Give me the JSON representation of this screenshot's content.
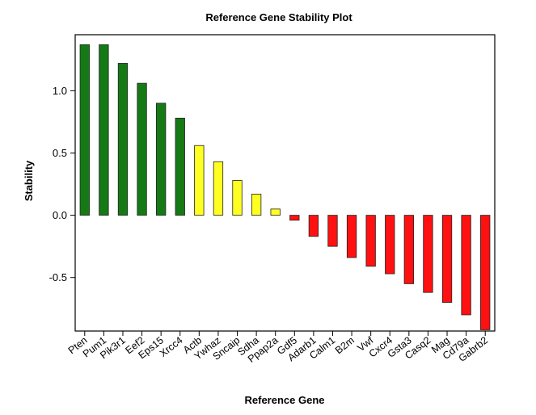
{
  "chart_data": {
    "type": "bar",
    "title": "Reference Gene Stability Plot",
    "xlabel": "Reference Gene",
    "ylabel": "Stability",
    "ylim": [
      -0.93,
      1.45
    ],
    "yticks": [
      -0.5,
      0.0,
      0.5,
      1.0
    ],
    "ytick_labels": [
      "-0.5",
      "0.0",
      "0.5",
      "1.0"
    ],
    "grid": false,
    "categories": [
      "Pten",
      "Pum1",
      "Pik3r1",
      "Eef2",
      "Eps15",
      "Xrcc4",
      "Actb",
      "Ywhaz",
      "Sncaip",
      "Sdha",
      "Ppap2a",
      "Gdf5",
      "Adarb1",
      "Calm1",
      "B2m",
      "Vwf",
      "Cxcr4",
      "Gsta3",
      "Casq2",
      "Mag",
      "Cd79a",
      "Gabrb2"
    ],
    "values": [
      1.37,
      1.37,
      1.22,
      1.06,
      0.9,
      0.78,
      0.56,
      0.43,
      0.28,
      0.17,
      0.05,
      -0.04,
      -0.17,
      -0.25,
      -0.34,
      -0.41,
      -0.47,
      -0.55,
      -0.62,
      -0.7,
      -0.8,
      -0.92
    ],
    "colors": {
      "green": "#157a15",
      "yellow": "#ffff22",
      "red": "#ff1111"
    },
    "bar_color_groups": [
      "green",
      "green",
      "green",
      "green",
      "green",
      "green",
      "yellow",
      "yellow",
      "yellow",
      "yellow",
      "yellow",
      "red",
      "red",
      "red",
      "red",
      "red",
      "red",
      "red",
      "red",
      "red",
      "red",
      "red"
    ]
  }
}
